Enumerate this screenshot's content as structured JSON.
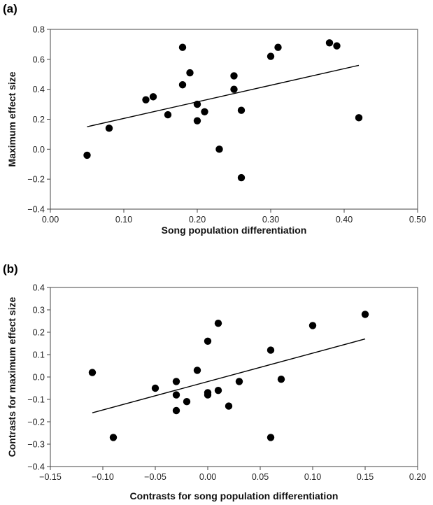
{
  "chart_data": [
    {
      "type": "scatter",
      "panel_label": "(a)",
      "xlabel": "Song population differentiation",
      "ylabel": "Maximum effect size",
      "xlim": [
        0.0,
        0.5
      ],
      "ylim": [
        -0.4,
        0.8
      ],
      "x_ticks": [
        "0.00",
        "0.10",
        "0.20",
        "0.30",
        "0.40",
        "0.50"
      ],
      "y_ticks": [
        "−0.4",
        "−0.2",
        "0.0",
        "0.2",
        "0.4",
        "0.6",
        "0.8"
      ],
      "x_tick_values": [
        0.0,
        0.1,
        0.2,
        0.3,
        0.4,
        0.5
      ],
      "y_tick_values": [
        -0.4,
        -0.2,
        0.0,
        0.2,
        0.4,
        0.6,
        0.8
      ],
      "points": [
        [
          0.05,
          -0.04
        ],
        [
          0.08,
          0.14
        ],
        [
          0.13,
          0.33
        ],
        [
          0.14,
          0.35
        ],
        [
          0.16,
          0.23
        ],
        [
          0.18,
          0.68
        ],
        [
          0.18,
          0.43
        ],
        [
          0.19,
          0.51
        ],
        [
          0.2,
          0.3
        ],
        [
          0.2,
          0.19
        ],
        [
          0.21,
          0.25
        ],
        [
          0.23,
          0.0
        ],
        [
          0.25,
          0.49
        ],
        [
          0.25,
          0.4
        ],
        [
          0.26,
          0.26
        ],
        [
          0.26,
          -0.19
        ],
        [
          0.3,
          0.62
        ],
        [
          0.31,
          0.68
        ],
        [
          0.38,
          0.71
        ],
        [
          0.39,
          0.69
        ],
        [
          0.42,
          0.21
        ]
      ],
      "trendline": [
        [
          0.05,
          0.15
        ],
        [
          0.42,
          0.56
        ]
      ],
      "grid": false,
      "legend": "none"
    },
    {
      "type": "scatter",
      "panel_label": "(b)",
      "xlabel": "Contrasts for song population differentiation",
      "ylabel": "Contrasts for maximum effect size",
      "xlim": [
        -0.15,
        0.2
      ],
      "ylim": [
        -0.4,
        0.4
      ],
      "x_ticks": [
        "−0.15",
        "−0.10",
        "−0.05",
        "0.00",
        "0.05",
        "0.10",
        "0.15",
        "0.20"
      ],
      "y_ticks": [
        "−0.4",
        "−0.3",
        "−0.2",
        "−0.1",
        "0.0",
        "0.1",
        "0.2",
        "0.3",
        "0.4"
      ],
      "x_tick_values": [
        -0.15,
        -0.1,
        -0.05,
        0.0,
        0.05,
        0.1,
        0.15,
        0.2
      ],
      "y_tick_values": [
        -0.4,
        -0.3,
        -0.2,
        -0.1,
        0.0,
        0.1,
        0.2,
        0.3,
        0.4
      ],
      "points": [
        [
          -0.11,
          0.02
        ],
        [
          -0.09,
          -0.27
        ],
        [
          -0.05,
          -0.05
        ],
        [
          -0.03,
          -0.02
        ],
        [
          -0.03,
          -0.08
        ],
        [
          -0.03,
          -0.15
        ],
        [
          -0.02,
          -0.11
        ],
        [
          -0.01,
          0.03
        ],
        [
          0.0,
          0.16
        ],
        [
          0.0,
          -0.07
        ],
        [
          0.0,
          -0.08
        ],
        [
          0.01,
          0.24
        ],
        [
          0.01,
          -0.06
        ],
        [
          0.02,
          -0.13
        ],
        [
          0.03,
          -0.02
        ],
        [
          0.06,
          0.12
        ],
        [
          0.06,
          -0.27
        ],
        [
          0.07,
          -0.01
        ],
        [
          0.1,
          0.23
        ],
        [
          0.15,
          0.28
        ]
      ],
      "trendline": [
        [
          -0.11,
          -0.16
        ],
        [
          0.15,
          0.17
        ]
      ],
      "grid": false,
      "legend": "none"
    }
  ]
}
